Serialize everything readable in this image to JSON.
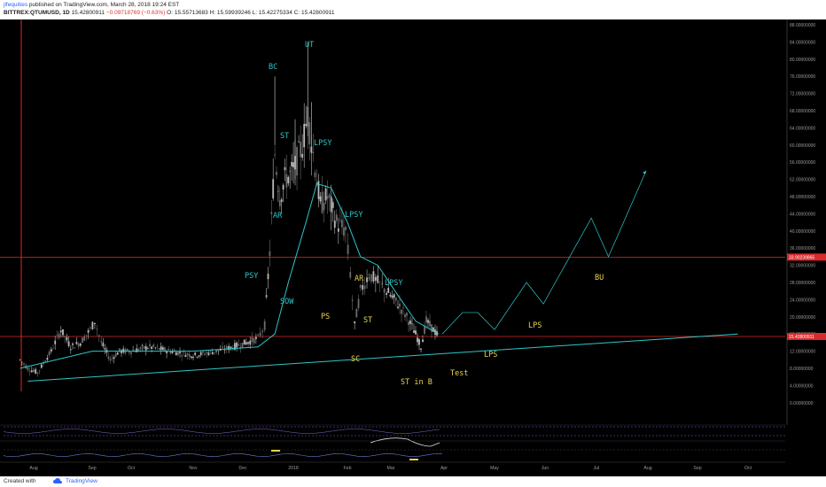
{
  "header": {
    "author": "jlfequities",
    "published": "published on TradingView.com, March 28, 2018 19:24 EST",
    "symbol": "BITTREX:QTUMUSD, 1D",
    "price": "15.42800911",
    "change": "−0.09718769 (−0.63%)",
    "ohlc": "O: 15.55713683  H: 15.59939246  L: 15.42275334  C: 15.42800911"
  },
  "footer": {
    "created_with": "Created with",
    "brand": "TradingView"
  },
  "colors": {
    "background": "#000000",
    "cyan": "#2ec7c9",
    "yellow": "#e8d44d",
    "red": "#d92b2b",
    "candle": "#9a9a9a",
    "purple": "#8a5bd6"
  },
  "chart_data": {
    "type": "candlestick",
    "yaxis": {
      "ticks": [
        "88.00000000",
        "84.00000000",
        "80.00000000",
        "76.00000000",
        "72.00000000",
        "68.00000000",
        "64.00000000",
        "60.00000000",
        "56.00000000",
        "52.00000000",
        "48.00000000",
        "44.00000000",
        "40.00000000",
        "36.00000000",
        "32.00000000",
        "28.00000000",
        "24.00000000",
        "20.00000000",
        "16.00000000",
        "12.00000000",
        "8.00000000",
        "4.00000000",
        "0.00000000"
      ],
      "ylim": [
        0,
        88
      ]
    },
    "xaxis": {
      "ticks": [
        "Aug",
        "Sep",
        "Oct",
        "Nov",
        "Dec",
        "2018",
        "Feb",
        "Mar",
        "Apr",
        "May",
        "Jun",
        "Jul",
        "Aug",
        "Sep",
        "Oct"
      ]
    },
    "price_labels": [
      {
        "value": 33.90239865,
        "label": "33.90239865"
      },
      {
        "value": 15.42800911,
        "label": "15.42800911"
      }
    ],
    "price_path": [
      {
        "x": "Jul 24",
        "y": 10
      },
      {
        "x": "Jul 28",
        "y": 8
      },
      {
        "x": "Aug 3",
        "y": 7
      },
      {
        "x": "Aug 10",
        "y": 12
      },
      {
        "x": "Aug 15",
        "y": 17
      },
      {
        "x": "Aug 20",
        "y": 13
      },
      {
        "x": "Aug 25",
        "y": 14
      },
      {
        "x": "Aug 30",
        "y": 17
      },
      {
        "x": "Sep 3",
        "y": 19
      },
      {
        "x": "Sep 8",
        "y": 14
      },
      {
        "x": "Sep 15",
        "y": 10
      },
      {
        "x": "Sep 22",
        "y": 12
      },
      {
        "x": "Oct 1",
        "y": 12
      },
      {
        "x": "Oct 10",
        "y": 13
      },
      {
        "x": "Oct 20",
        "y": 12
      },
      {
        "x": "Nov 1",
        "y": 11
      },
      {
        "x": "Nov 15",
        "y": 12
      },
      {
        "x": "Nov 25",
        "y": 13
      },
      {
        "x": "Dec 3",
        "y": 14
      },
      {
        "x": "Dec 10",
        "y": 15
      },
      {
        "x": "Dec 14",
        "y": 18
      },
      {
        "x": "Dec 17",
        "y": 35
      },
      {
        "x": "Dec 20",
        "y": 58
      },
      {
        "x": "Dec 23",
        "y": 48
      },
      {
        "x": "Dec 26",
        "y": 52
      },
      {
        "x": "Dec 29",
        "y": 53
      },
      {
        "x": "Jan 2",
        "y": 55
      },
      {
        "x": "Jan 6",
        "y": 60
      },
      {
        "x": "Jan 9",
        "y": 67
      },
      {
        "x": "Jan 12",
        "y": 58
      },
      {
        "x": "Jan 16",
        "y": 46
      },
      {
        "x": "Jan 20",
        "y": 48
      },
      {
        "x": "Jan 25",
        "y": 42
      },
      {
        "x": "Jan 30",
        "y": 40
      },
      {
        "x": "Feb 3",
        "y": 30
      },
      {
        "x": "Feb 6",
        "y": 18
      },
      {
        "x": "Feb 10",
        "y": 26
      },
      {
        "x": "Feb 16",
        "y": 30
      },
      {
        "x": "Feb 22",
        "y": 28
      },
      {
        "x": "Feb 28",
        "y": 26
      },
      {
        "x": "Mar 5",
        "y": 23
      },
      {
        "x": "Mar 10",
        "y": 20
      },
      {
        "x": "Mar 15",
        "y": 16
      },
      {
        "x": "Mar 18",
        "y": 13
      },
      {
        "x": "Mar 21",
        "y": 19
      },
      {
        "x": "Mar 25",
        "y": 17
      },
      {
        "x": "Mar 28",
        "y": 15.43
      }
    ],
    "ma_path": [
      {
        "x": "Jul 24",
        "y": 8
      },
      {
        "x": "Sep 1",
        "y": 12
      },
      {
        "x": "Nov 1",
        "y": 12
      },
      {
        "x": "Dec 10",
        "y": 13
      },
      {
        "x": "Dec 20",
        "y": 16
      },
      {
        "x": "Dec 28",
        "y": 28
      },
      {
        "x": "Jan 8",
        "y": 42
      },
      {
        "x": "Jan 14",
        "y": 51
      },
      {
        "x": "Jan 22",
        "y": 50
      },
      {
        "x": "Feb 1",
        "y": 42
      },
      {
        "x": "Feb 10",
        "y": 34
      },
      {
        "x": "Feb 22",
        "y": 32
      },
      {
        "x": "Mar 5",
        "y": 25
      },
      {
        "x": "Mar 15",
        "y": 19
      },
      {
        "x": "Mar 28",
        "y": 16
      }
    ],
    "trendline": [
      {
        "x": "Jul 28",
        "y": 5
      },
      {
        "x": "Sep 25",
        "y": 16
      }
    ],
    "projection": [
      {
        "x": "Mar 30",
        "y": 16
      },
      {
        "x": "Apr 12",
        "y": 21
      },
      {
        "x": "Apr 21",
        "y": 21
      },
      {
        "x": "May 1",
        "y": 17
      },
      {
        "x": "May 20",
        "y": 28
      },
      {
        "x": "May 30",
        "y": 23
      },
      {
        "x": "Jun 28",
        "y": 43
      },
      {
        "x": "Jul 8",
        "y": 34
      },
      {
        "x": "Jul 30",
        "y": 54
      }
    ],
    "annotations": [
      {
        "text": "BC",
        "color": "cyan"
      },
      {
        "text": "UT",
        "color": "cyan"
      },
      {
        "text": "ST",
        "color": "cyan"
      },
      {
        "text": "LPSY",
        "color": "cyan"
      },
      {
        "text": "AR",
        "color": "cyan"
      },
      {
        "text": "LPSY",
        "color": "cyan"
      },
      {
        "text": "PSY",
        "color": "cyan"
      },
      {
        "text": "SOW",
        "color": "cyan"
      },
      {
        "text": "LPSY",
        "color": "cyan"
      },
      {
        "text": "AR",
        "color": "yellow"
      },
      {
        "text": "PS",
        "color": "yellow"
      },
      {
        "text": "ST",
        "color": "yellow"
      },
      {
        "text": "SC",
        "color": "yellow"
      },
      {
        "text": "ST in B",
        "color": "yellow"
      },
      {
        "text": "Test",
        "color": "yellow"
      },
      {
        "text": "LPS",
        "color": "yellow"
      },
      {
        "text": "LPS",
        "color": "yellow"
      },
      {
        "text": "BU",
        "color": "yellow"
      }
    ],
    "grid": false,
    "legend": "none"
  }
}
